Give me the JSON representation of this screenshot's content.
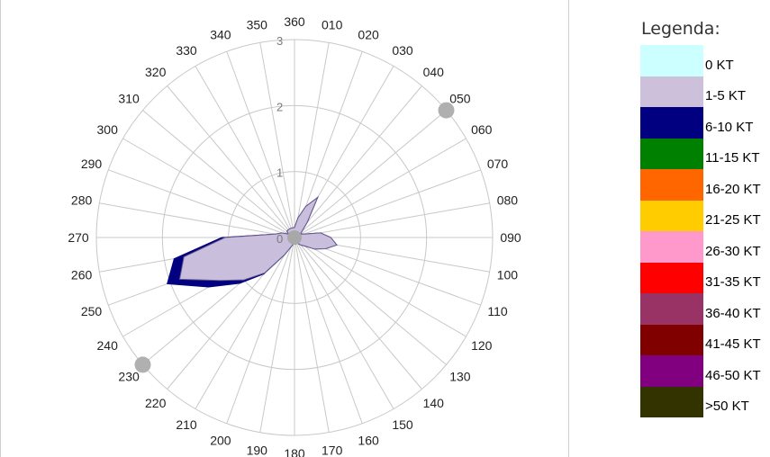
{
  "chart_data": {
    "type": "radar",
    "subtype": "wind-rose",
    "directions": [
      "360",
      "010",
      "020",
      "030",
      "040",
      "050",
      "060",
      "070",
      "080",
      "090",
      "100",
      "110",
      "120",
      "130",
      "140",
      "150",
      "160",
      "170",
      "180",
      "190",
      "200",
      "210",
      "220",
      "230",
      "240",
      "250",
      "260",
      "270",
      "280",
      "290",
      "300",
      "310",
      "320",
      "330",
      "340",
      "350"
    ],
    "radial_ticks": [
      "0",
      "1",
      "2",
      "3"
    ],
    "rmax": 3,
    "series": [
      {
        "name": "1-5 KT",
        "color": "#c9bfdc",
        "values": [
          0.15,
          0.3,
          0.5,
          0.7,
          0.3,
          0.15,
          0.1,
          0.15,
          0.4,
          0.55,
          0.65,
          0.5,
          0.35,
          0.2,
          0.15,
          0.1,
          0.1,
          0.1,
          0.1,
          0.1,
          0.15,
          0.3,
          0.7,
          1.0,
          1.3,
          1.85,
          1.7,
          1.05,
          0.3,
          0.2,
          0.1,
          0.15,
          0.15,
          0.15,
          0.15,
          0.15
        ]
      },
      {
        "name": "6-10 KT",
        "color": "#000080",
        "values": [
          0.15,
          0.3,
          0.5,
          0.7,
          0.3,
          0.15,
          0.1,
          0.15,
          0.4,
          0.55,
          0.65,
          0.5,
          0.35,
          0.2,
          0.15,
          0.1,
          0.1,
          0.1,
          0.1,
          0.1,
          0.15,
          0.3,
          0.72,
          1.08,
          1.5,
          2.05,
          1.85,
          1.1,
          0.3,
          0.2,
          0.1,
          0.15,
          0.15,
          0.15,
          0.15,
          0.15
        ]
      }
    ],
    "runway_markers": [
      "050",
      "230"
    ],
    "legend": {
      "title": "Legenda:",
      "placement": "right",
      "entries": [
        {
          "label": "0 KT",
          "color": "#ccffff"
        },
        {
          "label": "1-5 KT",
          "color": "#ccc0da"
        },
        {
          "label": "6-10 KT",
          "color": "#000080"
        },
        {
          "label": "11-15 KT",
          "color": "#008000"
        },
        {
          "label": "16-20 KT",
          "color": "#ff6600"
        },
        {
          "label": "21-25 KT",
          "color": "#ffcc00"
        },
        {
          "label": "26-30 KT",
          "color": "#ff99cc"
        },
        {
          "label": "31-35 KT",
          "color": "#ff0000"
        },
        {
          "label": "36-40 KT",
          "color": "#993366"
        },
        {
          "label": "41-45 KT",
          "color": "#800000"
        },
        {
          "label": "46-50 KT",
          "color": "#800080"
        },
        {
          "label": ">50 KT",
          "color": "#333300"
        }
      ]
    }
  }
}
